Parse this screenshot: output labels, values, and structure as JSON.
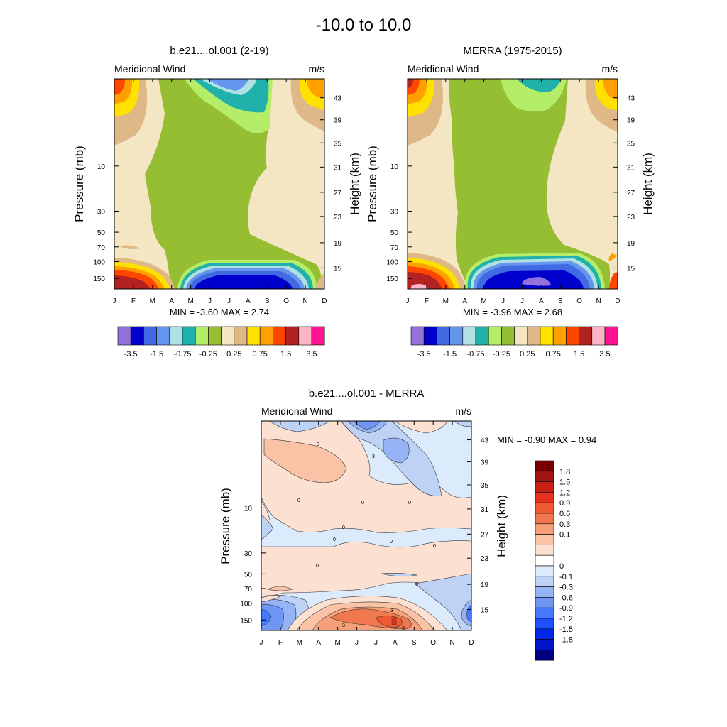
{
  "page_title": "-10.0 to  10.0",
  "colors": {
    "panel_scale": [
      "#9370DB",
      "#0000CD",
      "#4169E1",
      "#6495ED",
      "#B0E0E6",
      "#20B2AA",
      "#B4EE68",
      "#96BE32",
      "#F5E6C3",
      "#DEB887",
      "#FFE100",
      "#FFA000",
      "#FF4600",
      "#B22222",
      "#FFB4C8",
      "#FF1493"
    ],
    "diff_scale": [
      "#000080",
      "#0014C8",
      "#0028E6",
      "#1E50FF",
      "#4678FF",
      "#6E96F5",
      "#96B4F5",
      "#BED2F5",
      "#DCEBFC",
      "#FFFFFF",
      "#FCE1D2",
      "#FAC3A5",
      "#F5A078",
      "#F07850",
      "#F05A32",
      "#E6321E",
      "#C81E14",
      "#A01414",
      "#800000"
    ]
  },
  "chart_data": [
    {
      "type": "contour",
      "title": "b.e21....ol.001 (2-19)",
      "left_label": "Meridional Wind",
      "right_label": "m/s",
      "ylabel": "Pressure (mb)",
      "ylabel_right": "Height (km)",
      "x_ticks": [
        "J",
        "F",
        "M",
        "A",
        "M",
        "J",
        "J",
        "A",
        "S",
        "O",
        "N",
        "D"
      ],
      "y_ticks": [
        "10",
        "30",
        "50",
        "70",
        "100",
        "150"
      ],
      "y_ticks_right": [
        "43",
        "39",
        "35",
        "31",
        "27",
        "23",
        "19",
        "15"
      ],
      "stats": "MIN =  -3.60  MAX =   2.74",
      "colorbar_labels": [
        "-3.5",
        "-1.5",
        "-0.75",
        "-0.25",
        "0.25",
        "0.75",
        "1.5",
        "3.5"
      ]
    },
    {
      "type": "contour",
      "title": "MERRA (1975-2015)",
      "left_label": "Meridional Wind",
      "right_label": "m/s",
      "ylabel": "Pressure (mb)",
      "ylabel_right": "Height (km)",
      "x_ticks": [
        "J",
        "F",
        "M",
        "A",
        "M",
        "J",
        "J",
        "A",
        "S",
        "O",
        "N",
        "D"
      ],
      "y_ticks": [
        "10",
        "30",
        "50",
        "70",
        "100",
        "150"
      ],
      "y_ticks_right": [
        "43",
        "39",
        "35",
        "31",
        "27",
        "23",
        "19",
        "15"
      ],
      "stats": "MIN =  -3.96  MAX =   2.68",
      "colorbar_labels": [
        "-3.5",
        "-1.5",
        "-0.75",
        "-0.25",
        "0.25",
        "0.75",
        "1.5",
        "3.5"
      ]
    },
    {
      "type": "contour",
      "title": "b.e21....ol.001 - MERRA",
      "left_label": "Meridional Wind",
      "right_label": "m/s",
      "ylabel": "Pressure (mb)",
      "ylabel_right": "Height (km)",
      "x_ticks": [
        "J",
        "F",
        "M",
        "A",
        "M",
        "J",
        "J",
        "A",
        "S",
        "O",
        "N",
        "D"
      ],
      "y_ticks": [
        "10",
        "30",
        "50",
        "70",
        "100",
        "150"
      ],
      "y_ticks_right": [
        "43",
        "39",
        "35",
        "31",
        "27",
        "23",
        "19",
        "15"
      ],
      "stats": "MIN =  -0.90  MAX =   0.94",
      "colorbar_labels": [
        "1.8",
        "1.5",
        "1.2",
        "0.9",
        "0.6",
        "0.3",
        "0.1",
        "0",
        "-0.1",
        "-0.3",
        "-0.6",
        "-0.9",
        "-1.2",
        "-1.5",
        "-1.8"
      ],
      "contour_labels": [
        "0",
        "0",
        "0",
        "0",
        "0",
        "0",
        "0",
        "0",
        "0",
        "0",
        "3",
        "3",
        "3",
        "3"
      ]
    }
  ]
}
